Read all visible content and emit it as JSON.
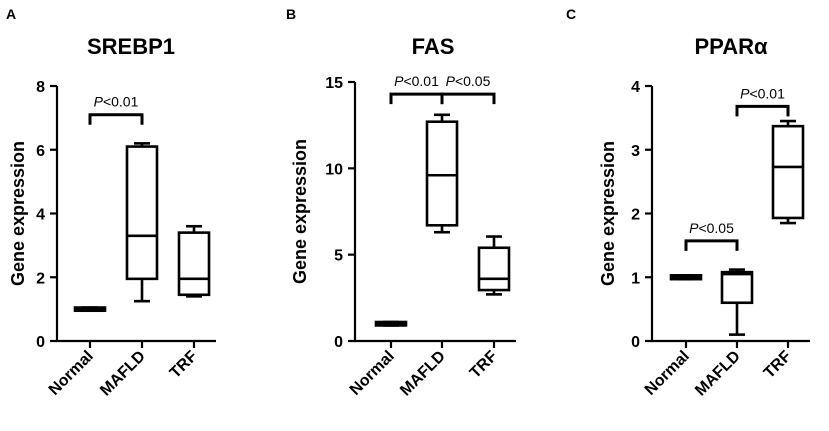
{
  "chart_data": [
    {
      "type": "box",
      "panel": "A",
      "title": "SREBP1",
      "ylabel": "Gene expression",
      "xlabel": "",
      "ylim": [
        0,
        8
      ],
      "yticks": [
        0,
        2,
        4,
        6,
        8
      ],
      "categories": [
        "Normal",
        "MAFLD",
        "TRF"
      ],
      "boxes": [
        {
          "min": 0.95,
          "q1": 0.95,
          "median": 1.0,
          "q3": 1.05,
          "max": 1.05
        },
        {
          "min": 1.25,
          "q1": 1.95,
          "median": 3.3,
          "q3": 6.1,
          "max": 6.2
        },
        {
          "min": 1.4,
          "q1": 1.45,
          "median": 1.95,
          "q3": 3.4,
          "max": 3.6
        }
      ],
      "annotations": [
        {
          "from": 0,
          "to": 1,
          "text": "P<0.01",
          "y": 7.1
        }
      ]
    },
    {
      "type": "box",
      "panel": "B",
      "title": "FAS",
      "ylabel": "Gene expression",
      "xlabel": "",
      "ylim": [
        0,
        15
      ],
      "yticks": [
        0,
        5,
        10,
        15
      ],
      "categories": [
        "Normal",
        "MAFLD",
        "TRF"
      ],
      "boxes": [
        {
          "min": 0.9,
          "q1": 0.9,
          "median": 1.0,
          "q3": 1.1,
          "max": 1.1
        },
        {
          "min": 6.3,
          "q1": 6.7,
          "median": 9.6,
          "q3": 12.7,
          "max": 13.1
        },
        {
          "min": 2.7,
          "q1": 2.95,
          "median": 3.6,
          "q3": 5.4,
          "max": 6.05
        }
      ],
      "annotations": [
        {
          "from": 0,
          "to": 1,
          "text": "P<0.01",
          "y": 14.3
        },
        {
          "from": 1,
          "to": 2,
          "text": "P<0.05",
          "y": 14.3
        }
      ]
    },
    {
      "type": "box",
      "panel": "C",
      "title": "PPARα",
      "ylabel": "Gene expression",
      "xlabel": "",
      "ylim": [
        0,
        4
      ],
      "yticks": [
        0,
        1,
        2,
        3,
        4
      ],
      "categories": [
        "Normal",
        "MAFLD",
        "TRF"
      ],
      "boxes": [
        {
          "min": 0.97,
          "q1": 0.97,
          "median": 1.0,
          "q3": 1.03,
          "max": 1.03
        },
        {
          "min": 0.1,
          "q1": 0.6,
          "median": 1.05,
          "q3": 1.08,
          "max": 1.12
        },
        {
          "min": 1.85,
          "q1": 1.93,
          "median": 2.73,
          "q3": 3.37,
          "max": 3.45
        }
      ],
      "annotations": [
        {
          "from": 0,
          "to": 1,
          "text": "P<0.05",
          "y": 1.57
        },
        {
          "from": 1,
          "to": 2,
          "text": "P<0.01",
          "y": 3.68
        }
      ]
    }
  ]
}
